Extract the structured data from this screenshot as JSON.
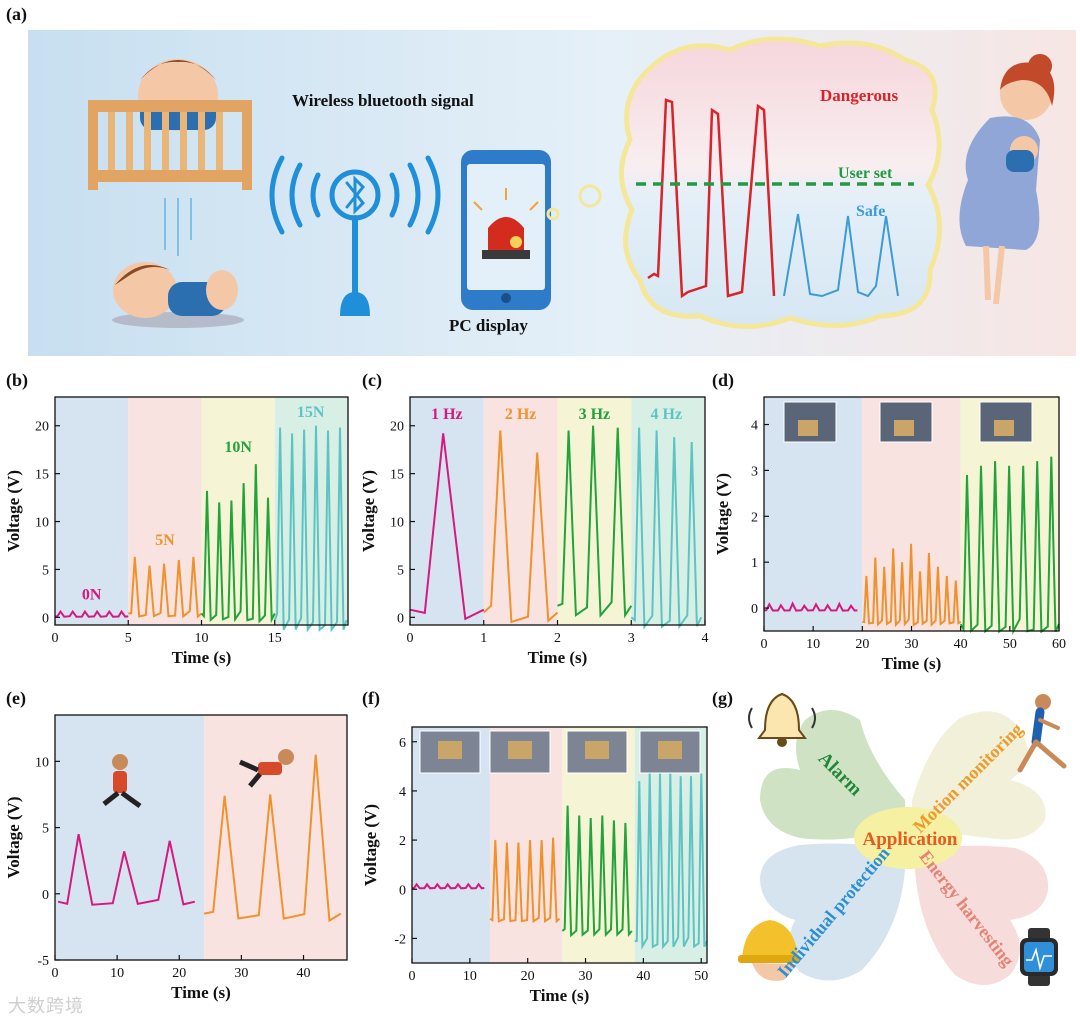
{
  "panel_labels": [
    "(a)",
    "(b)",
    "(c)",
    "(d)",
    "(e)",
    "(f)",
    "(g)"
  ],
  "scene": {
    "wireless_label": "Wireless bluetooth signal",
    "display_label": "PC display",
    "dangerous_label": "Dangerous",
    "user_set_label": "User set",
    "safe_label": "Safe",
    "dangerous_color": "#d8232a",
    "safe_color": "#3a9bd5",
    "threshold_color": "#1f9a45"
  },
  "chart_data": [
    {
      "panel": "b",
      "type": "line",
      "xlabel": "Time (s)",
      "ylabel": "Voltage (V)",
      "xlim": [
        0,
        20
      ],
      "ylim": [
        -0.8,
        23
      ],
      "xticks": [
        "0",
        "5",
        "10",
        "15"
      ],
      "yticks": [
        "0",
        "5",
        "10",
        "15",
        "20"
      ],
      "xtick_values": [
        0,
        5,
        10,
        15
      ],
      "ytick_values": [
        0,
        5,
        10,
        15,
        20
      ],
      "segments": [
        {
          "name": "0N",
          "color": "#d6197e",
          "bg": "#d6e4f2",
          "start": 0,
          "end": 5,
          "peaks": [
            0.6,
            0.6,
            0.6,
            0.6,
            0.6,
            0.6
          ],
          "base": 0.1
        },
        {
          "name": "5N",
          "color": "#f0922c",
          "bg": "#f9e3e1",
          "start": 5,
          "end": 10,
          "peaks": [
            6.3,
            5.4,
            5.6,
            6.0,
            6.3
          ],
          "base": 0.4
        },
        {
          "name": "10N",
          "color": "#22a33b",
          "bg": "#f5f5d6",
          "start": 10,
          "end": 15,
          "peaks": [
            13.2,
            12.0,
            12.2,
            14.0,
            16.0,
            12.5
          ],
          "base": 0.4
        },
        {
          "name": "15N",
          "color": "#5ec4c3",
          "bg": "#d8efe6",
          "start": 15,
          "end": 19.9,
          "peaks": [
            19.8,
            19.2,
            19.6,
            20.0,
            19.5,
            19.8
          ],
          "base": -0.3
        }
      ]
    },
    {
      "panel": "c",
      "type": "line",
      "xlabel": "Time (s)",
      "ylabel": "Voltage (V)",
      "xlim": [
        0,
        4
      ],
      "ylim": [
        -0.8,
        23
      ],
      "xticks": [
        "0",
        "1",
        "2",
        "3",
        "4"
      ],
      "yticks": [
        "0",
        "5",
        "10",
        "15",
        "20"
      ],
      "xtick_values": [
        0,
        1,
        2,
        3,
        4
      ],
      "ytick_values": [
        0,
        5,
        10,
        15,
        20
      ],
      "segments": [
        {
          "name": "1 Hz",
          "color": "#d6197e",
          "bg": "#d6e4f2",
          "start": 0,
          "end": 1,
          "peaks": [
            19.2
          ],
          "base": 0.8
        },
        {
          "name": "2 Hz",
          "color": "#f0922c",
          "bg": "#f9e3e1",
          "start": 1,
          "end": 2,
          "peaks": [
            19.5,
            17.2
          ],
          "base": 0.5
        },
        {
          "name": "3 Hz",
          "color": "#22a33b",
          "bg": "#f5f5d6",
          "start": 2,
          "end": 3,
          "peaks": [
            19.5,
            20.0,
            19.8
          ],
          "base": 1.2
        },
        {
          "name": "4 Hz",
          "color": "#5ec4c3",
          "bg": "#d8efe6",
          "start": 3,
          "end": 3.95,
          "peaks": [
            19.8,
            19.5,
            18.8,
            18.3
          ],
          "base": 0.0
        }
      ]
    },
    {
      "panel": "d",
      "type": "line",
      "xlabel": "Time (s)",
      "ylabel": "Voltage (V)",
      "xlim": [
        0,
        60
      ],
      "ylim": [
        -0.5,
        4.6
      ],
      "xticks": [
        "0",
        "10",
        "20",
        "30",
        "40",
        "50",
        "60"
      ],
      "yticks": [
        "0",
        "1",
        "2",
        "3",
        "4"
      ],
      "xtick_values": [
        0,
        10,
        20,
        30,
        40,
        50,
        60
      ],
      "ytick_values": [
        0,
        1,
        2,
        3,
        4
      ],
      "segments": [
        {
          "name": "",
          "color": "#d6197e",
          "bg": "#d6e4f2",
          "start": 0,
          "end": 19,
          "peaks": [
            0.08,
            0.06,
            0.1,
            0.05,
            0.08,
            0.06,
            0.09,
            0.05
          ],
          "base": -0.05
        },
        {
          "name": "",
          "color": "#f0922c",
          "bg": "#f9e3e1",
          "start": 20,
          "end": 40,
          "peaks": [
            0.7,
            1.1,
            0.9,
            1.3,
            1.0,
            1.4,
            0.8,
            1.2,
            0.9,
            0.7,
            0.6
          ],
          "base": -0.3
        },
        {
          "name": "",
          "color": "#22a33b",
          "bg": "#f5f5d6",
          "start": 40,
          "end": 60,
          "peaks": [
            2.9,
            3.1,
            3.2,
            3.1,
            3.1,
            3.2,
            3.3
          ],
          "base": -0.35
        }
      ]
    },
    {
      "panel": "e",
      "type": "line",
      "xlabel": "Time (s)",
      "ylabel": "Voltage (V)",
      "xlim": [
        0,
        47
      ],
      "ylim": [
        -5,
        13.5
      ],
      "xticks": [
        "0",
        "10",
        "20",
        "30",
        "40"
      ],
      "yticks": [
        "-5",
        "0",
        "5",
        "10"
      ],
      "xtick_values": [
        0,
        10,
        20,
        30,
        40
      ],
      "ytick_values": [
        -5,
        0,
        5,
        10
      ],
      "segments": [
        {
          "name": "",
          "color": "#d6197e",
          "bg": "#d6e4f2",
          "start": 0.5,
          "end": 22.5,
          "peaks": [
            4.5,
            3.2,
            4.0
          ],
          "base": -0.6
        },
        {
          "name": "",
          "color": "#f0922c",
          "bg": "#f9e3e1",
          "start": 24,
          "end": 46,
          "peaks": [
            7.4,
            7.5,
            10.5
          ],
          "base": -1.5
        }
      ]
    },
    {
      "panel": "f",
      "type": "line",
      "xlabel": "Time (s)",
      "ylabel": "Voltage (V)",
      "xlim": [
        0,
        51
      ],
      "ylim": [
        -3,
        6.6
      ],
      "xticks": [
        "0",
        "10",
        "20",
        "30",
        "40",
        "50"
      ],
      "yticks": [
        "-2",
        "0",
        "2",
        "4",
        "6"
      ],
      "xtick_values": [
        0,
        10,
        20,
        30,
        40,
        50
      ],
      "ytick_values": [
        -2,
        0,
        2,
        4,
        6
      ],
      "segments": [
        {
          "name": "",
          "color": "#d6197e",
          "bg": "#d6e4f2",
          "start": 0,
          "end": 12.5,
          "peaks": [
            0.2,
            0.2,
            0.2,
            0.2,
            0.2,
            0.2,
            0.2
          ],
          "base": 0.05
        },
        {
          "name": "",
          "color": "#f0922c",
          "bg": "#f9e3e1",
          "start": 13.5,
          "end": 25.5,
          "peaks": [
            2.0,
            1.9,
            1.9,
            2.0,
            2.0,
            2.1
          ],
          "base": -1.2
        },
        {
          "name": "",
          "color": "#22a33b",
          "bg": "#f5f5d6",
          "start": 26,
          "end": 38,
          "peaks": [
            3.4,
            3.0,
            2.9,
            3.0,
            2.8,
            2.7
          ],
          "base": -1.7
        },
        {
          "name": "",
          "color": "#5ec4c3",
          "bg": "#d8efe6",
          "start": 38.5,
          "end": 51,
          "peaks": [
            4.4,
            4.8,
            4.7,
            4.7,
            4.6,
            4.6,
            4.7
          ],
          "base": -2.1
        }
      ]
    }
  ],
  "petal_chart": {
    "center_label": "Application",
    "center_color": "#e85a1f",
    "petals": [
      {
        "label": "Alarm",
        "color": "#22863a",
        "fill": "#cfe3c4"
      },
      {
        "label": "Motion monitoring",
        "color": "#ef9a2b",
        "fill": "#f2f0d9"
      },
      {
        "label": "Individual protection",
        "color": "#2c8fd6",
        "fill": "#d6e4ef"
      },
      {
        "label": "Energy harvesting",
        "color": "#e58273",
        "fill": "#f7dcdc"
      }
    ]
  },
  "watermark": "大数跨境"
}
